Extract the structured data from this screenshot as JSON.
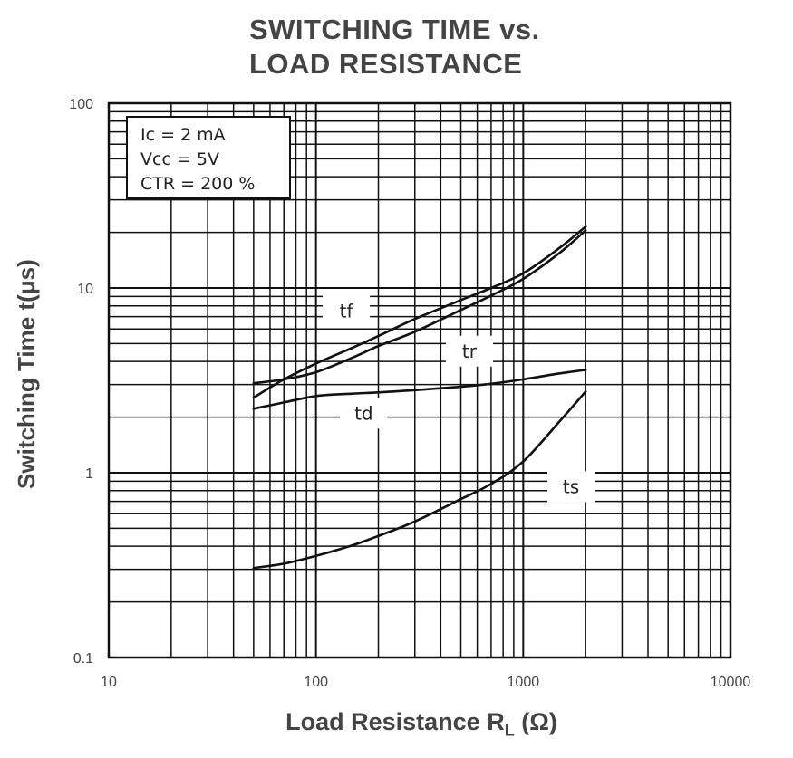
{
  "chart_data": {
    "type": "line",
    "title_line1": "SWITCHING TIME vs.",
    "title_line2": "LOAD RESISTANCE",
    "xlabel_text": "Load Resistance R",
    "xlabel_sub": "L",
    "xlabel_unit": "(Ω)",
    "ylabel": "Switching Time  t(μs)",
    "xscale": "log",
    "yscale": "log",
    "xlim": [
      10,
      10000
    ],
    "ylim": [
      0.1,
      100
    ],
    "x_ticks": [
      {
        "value": 10,
        "label": "10"
      },
      {
        "value": 100,
        "label": "100"
      },
      {
        "value": 1000,
        "label": "1000"
      },
      {
        "value": 10000,
        "label": "10000"
      }
    ],
    "y_ticks": [
      {
        "value": 100,
        "label": "100"
      },
      {
        "value": 10,
        "label": "10"
      },
      {
        "value": 1,
        "label": "1"
      },
      {
        "value": 0.1,
        "label": "0.1"
      }
    ],
    "grid": true,
    "conditions": [
      "Ic = 2 mA",
      "Vcc = 5V",
      "CTR = 200 %"
    ],
    "series": [
      {
        "name": "tf",
        "label_x": 140,
        "label_y": 7.5,
        "x": [
          50,
          70,
          100,
          150,
          200,
          300,
          500,
          700,
          1000,
          1500,
          2000
        ],
        "y": [
          2.55,
          3.2,
          3.9,
          4.75,
          5.5,
          6.8,
          8.6,
          10.0,
          12.0,
          16.5,
          21.5
        ]
      },
      {
        "name": "tr",
        "label_x": 550,
        "label_y": 4.55,
        "x": [
          50,
          70,
          100,
          150,
          200,
          300,
          500,
          700,
          1000,
          1500,
          2000
        ],
        "y": [
          3.05,
          3.2,
          3.5,
          4.2,
          4.85,
          5.8,
          7.6,
          9.1,
          11.2,
          15.5,
          20.5
        ]
      },
      {
        "name": "td",
        "label_x": 170,
        "label_y": 2.1,
        "x": [
          50,
          70,
          100,
          150,
          200,
          300,
          500,
          700,
          1000,
          1500,
          2000
        ],
        "y": [
          2.22,
          2.4,
          2.6,
          2.68,
          2.72,
          2.8,
          2.92,
          3.03,
          3.2,
          3.45,
          3.6
        ]
      },
      {
        "name": "ts",
        "label_x": 1700,
        "label_y": 0.84,
        "x": [
          50,
          70,
          100,
          150,
          200,
          300,
          500,
          700,
          1000,
          1500,
          2000
        ],
        "y": [
          0.305,
          0.322,
          0.355,
          0.405,
          0.455,
          0.545,
          0.72,
          0.87,
          1.15,
          1.9,
          2.75
        ]
      }
    ]
  }
}
